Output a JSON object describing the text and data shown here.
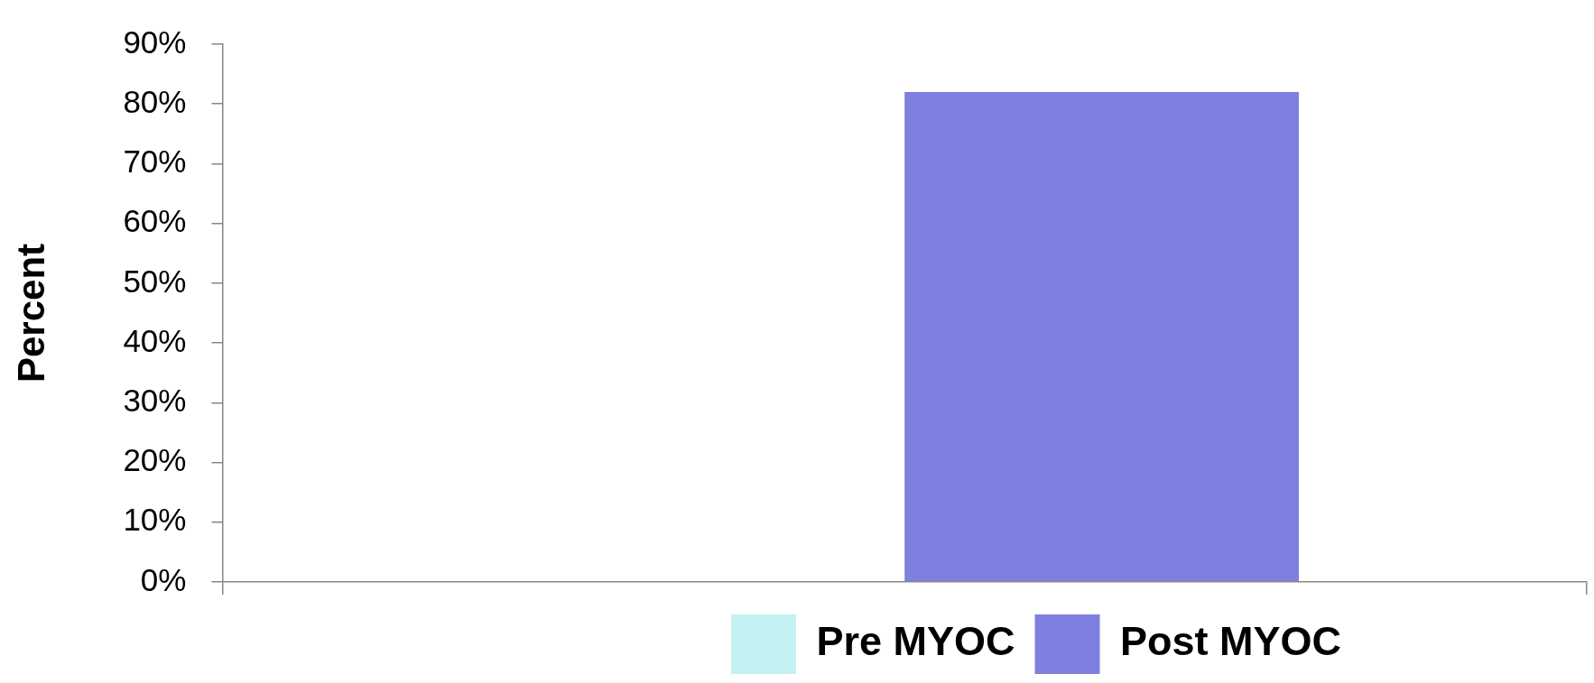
{
  "chart_data": {
    "type": "bar",
    "ylabel": "Percent",
    "categories": [
      null
    ],
    "series": [
      {
        "name": "Pre MYOC",
        "color": "#c4f1f1",
        "values": [
          0
        ]
      },
      {
        "name": "Post MYOC",
        "color": "#7f7fdf",
        "values": [
          82
        ]
      }
    ],
    "ylim": [
      0,
      90
    ],
    "yticks": [
      {
        "value": 0,
        "label": "0%"
      },
      {
        "value": 10,
        "label": "10%"
      },
      {
        "value": 20,
        "label": "20%"
      },
      {
        "value": 30,
        "label": "30%"
      },
      {
        "value": 40,
        "label": "40%"
      },
      {
        "value": 50,
        "label": "50%"
      },
      {
        "value": 60,
        "label": "60%"
      },
      {
        "value": 70,
        "label": "70%"
      },
      {
        "value": 80,
        "label": "80%"
      },
      {
        "value": 90,
        "label": "90%"
      }
    ],
    "grid": false,
    "legend": "bottom",
    "tick_labels": "y"
  }
}
